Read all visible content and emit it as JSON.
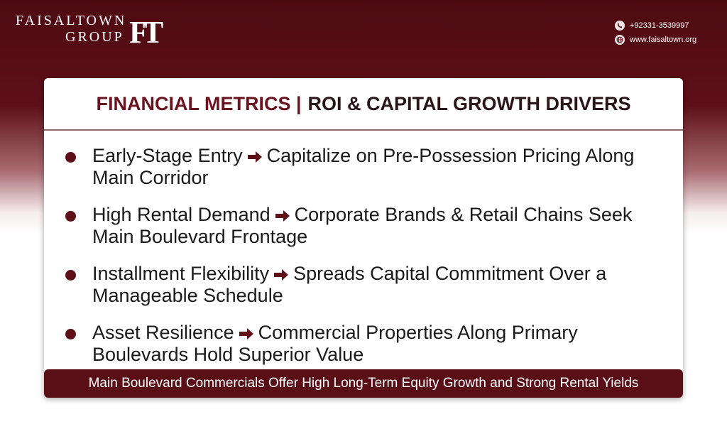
{
  "header": {
    "logo": {
      "line1": "FAISALTOWN",
      "line2": "GROUP",
      "monogram": "FT"
    },
    "contact": {
      "phone": "+92331-3539997",
      "website": "www.faisaltown.org"
    }
  },
  "card": {
    "title": {
      "highlight": "FINANCIAL METRICS |",
      "rest": "ROI & CAPITAL GROWTH DRIVERS"
    },
    "bullets": [
      {
        "lead": "Early-Stage Entry",
        "detail": "Capitalize on Pre-Possession Pricing Along Main Corridor"
      },
      {
        "lead": "High Rental Demand",
        "detail": "Corporate Brands & Retail Chains Seek Main Boulevard Frontage"
      },
      {
        "lead": "Installment Flexibility",
        "detail": "Spreads Capital Commitment Over a Manageable Schedule"
      },
      {
        "lead": "Asset Resilience",
        "detail": "Commercial Properties Along Primary Boulevards Hold Superior Value"
      }
    ],
    "footer": "Main Boulevard Commercials Offer High Long-Term Equity Growth and Strong Rental Yields"
  }
}
